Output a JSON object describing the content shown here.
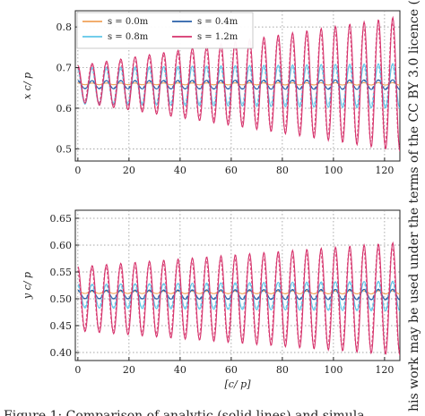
{
  "side_text": "his work may be used under the terms of the CC BY 3.0 licence (©",
  "caption": "Figure 1: Comparison of analytic (solid lines) and simula",
  "colors": {
    "s0": "#f0a35a",
    "s04": "#2a5fa8",
    "s08": "#5fc6e8",
    "s12": "#d6336c"
  },
  "chart_data": [
    {
      "type": "line",
      "panel": "top",
      "ylabel": "x c/ p",
      "xlabel": "",
      "xlim": [
        -1,
        126
      ],
      "ylim": [
        0.47,
        0.84
      ],
      "xticks": [
        0,
        20,
        40,
        60,
        80,
        100,
        120
      ],
      "xtick_labels": [
        "0",
        "20",
        "40",
        "60",
        "80",
        "100",
        "120"
      ],
      "yticks": [
        0.5,
        0.6,
        0.7,
        0.8
      ],
      "ytick_labels": [
        "0.5",
        "0.6",
        "0.7",
        "0.8"
      ],
      "grid": true,
      "legend": {
        "placement": "top-left",
        "entries": [
          "s = 0.0m",
          "s = 0.4m",
          "s = 0.8m",
          "s = 1.2m"
        ]
      },
      "series": [
        {
          "name": "s = 0.0m",
          "color_key": "s0",
          "base": 0.66,
          "amp_start": 0.002,
          "amp_end": 0.003,
          "period": 5.6
        },
        {
          "name": "s = 0.4m",
          "color_key": "s04",
          "base": 0.658,
          "amp_start": 0.01,
          "amp_end": 0.012,
          "period": 5.6
        },
        {
          "name": "s = 0.8m",
          "color_key": "s08",
          "base": 0.655,
          "amp_start": 0.045,
          "amp_end": 0.055,
          "period": 5.6
        },
        {
          "name": "s = 1.2m",
          "color_key": "s12",
          "base": 0.66,
          "amp_start": 0.045,
          "amp_end": 0.165,
          "period": 5.6
        }
      ]
    },
    {
      "type": "line",
      "panel": "bottom",
      "ylabel": "y c/ p",
      "xlabel": "[c/ p]",
      "xlim": [
        -1,
        126
      ],
      "ylim": [
        0.385,
        0.665
      ],
      "xticks": [
        0,
        20,
        40,
        60,
        80,
        100,
        120
      ],
      "xtick_labels": [
        "0",
        "20",
        "40",
        "60",
        "80",
        "100",
        "120"
      ],
      "yticks": [
        0.4,
        0.45,
        0.5,
        0.55,
        0.6,
        0.65
      ],
      "ytick_labels": [
        "0.40",
        "0.45",
        "0.50",
        "0.55",
        "0.60",
        "0.65"
      ],
      "grid": true,
      "series": [
        {
          "name": "s = 0.0m",
          "color_key": "s0",
          "base": 0.512,
          "amp_start": 0.002,
          "amp_end": 0.003,
          "period": 5.6
        },
        {
          "name": "s = 0.4m",
          "color_key": "s04",
          "base": 0.508,
          "amp_start": 0.008,
          "amp_end": 0.01,
          "period": 5.6
        },
        {
          "name": "s = 0.8m",
          "color_key": "s08",
          "base": 0.505,
          "amp_start": 0.022,
          "amp_end": 0.028,
          "period": 5.6
        },
        {
          "name": "s = 1.2m",
          "color_key": "s12",
          "base": 0.5,
          "amp_start": 0.06,
          "amp_end": 0.105,
          "period": 5.6
        }
      ]
    }
  ]
}
